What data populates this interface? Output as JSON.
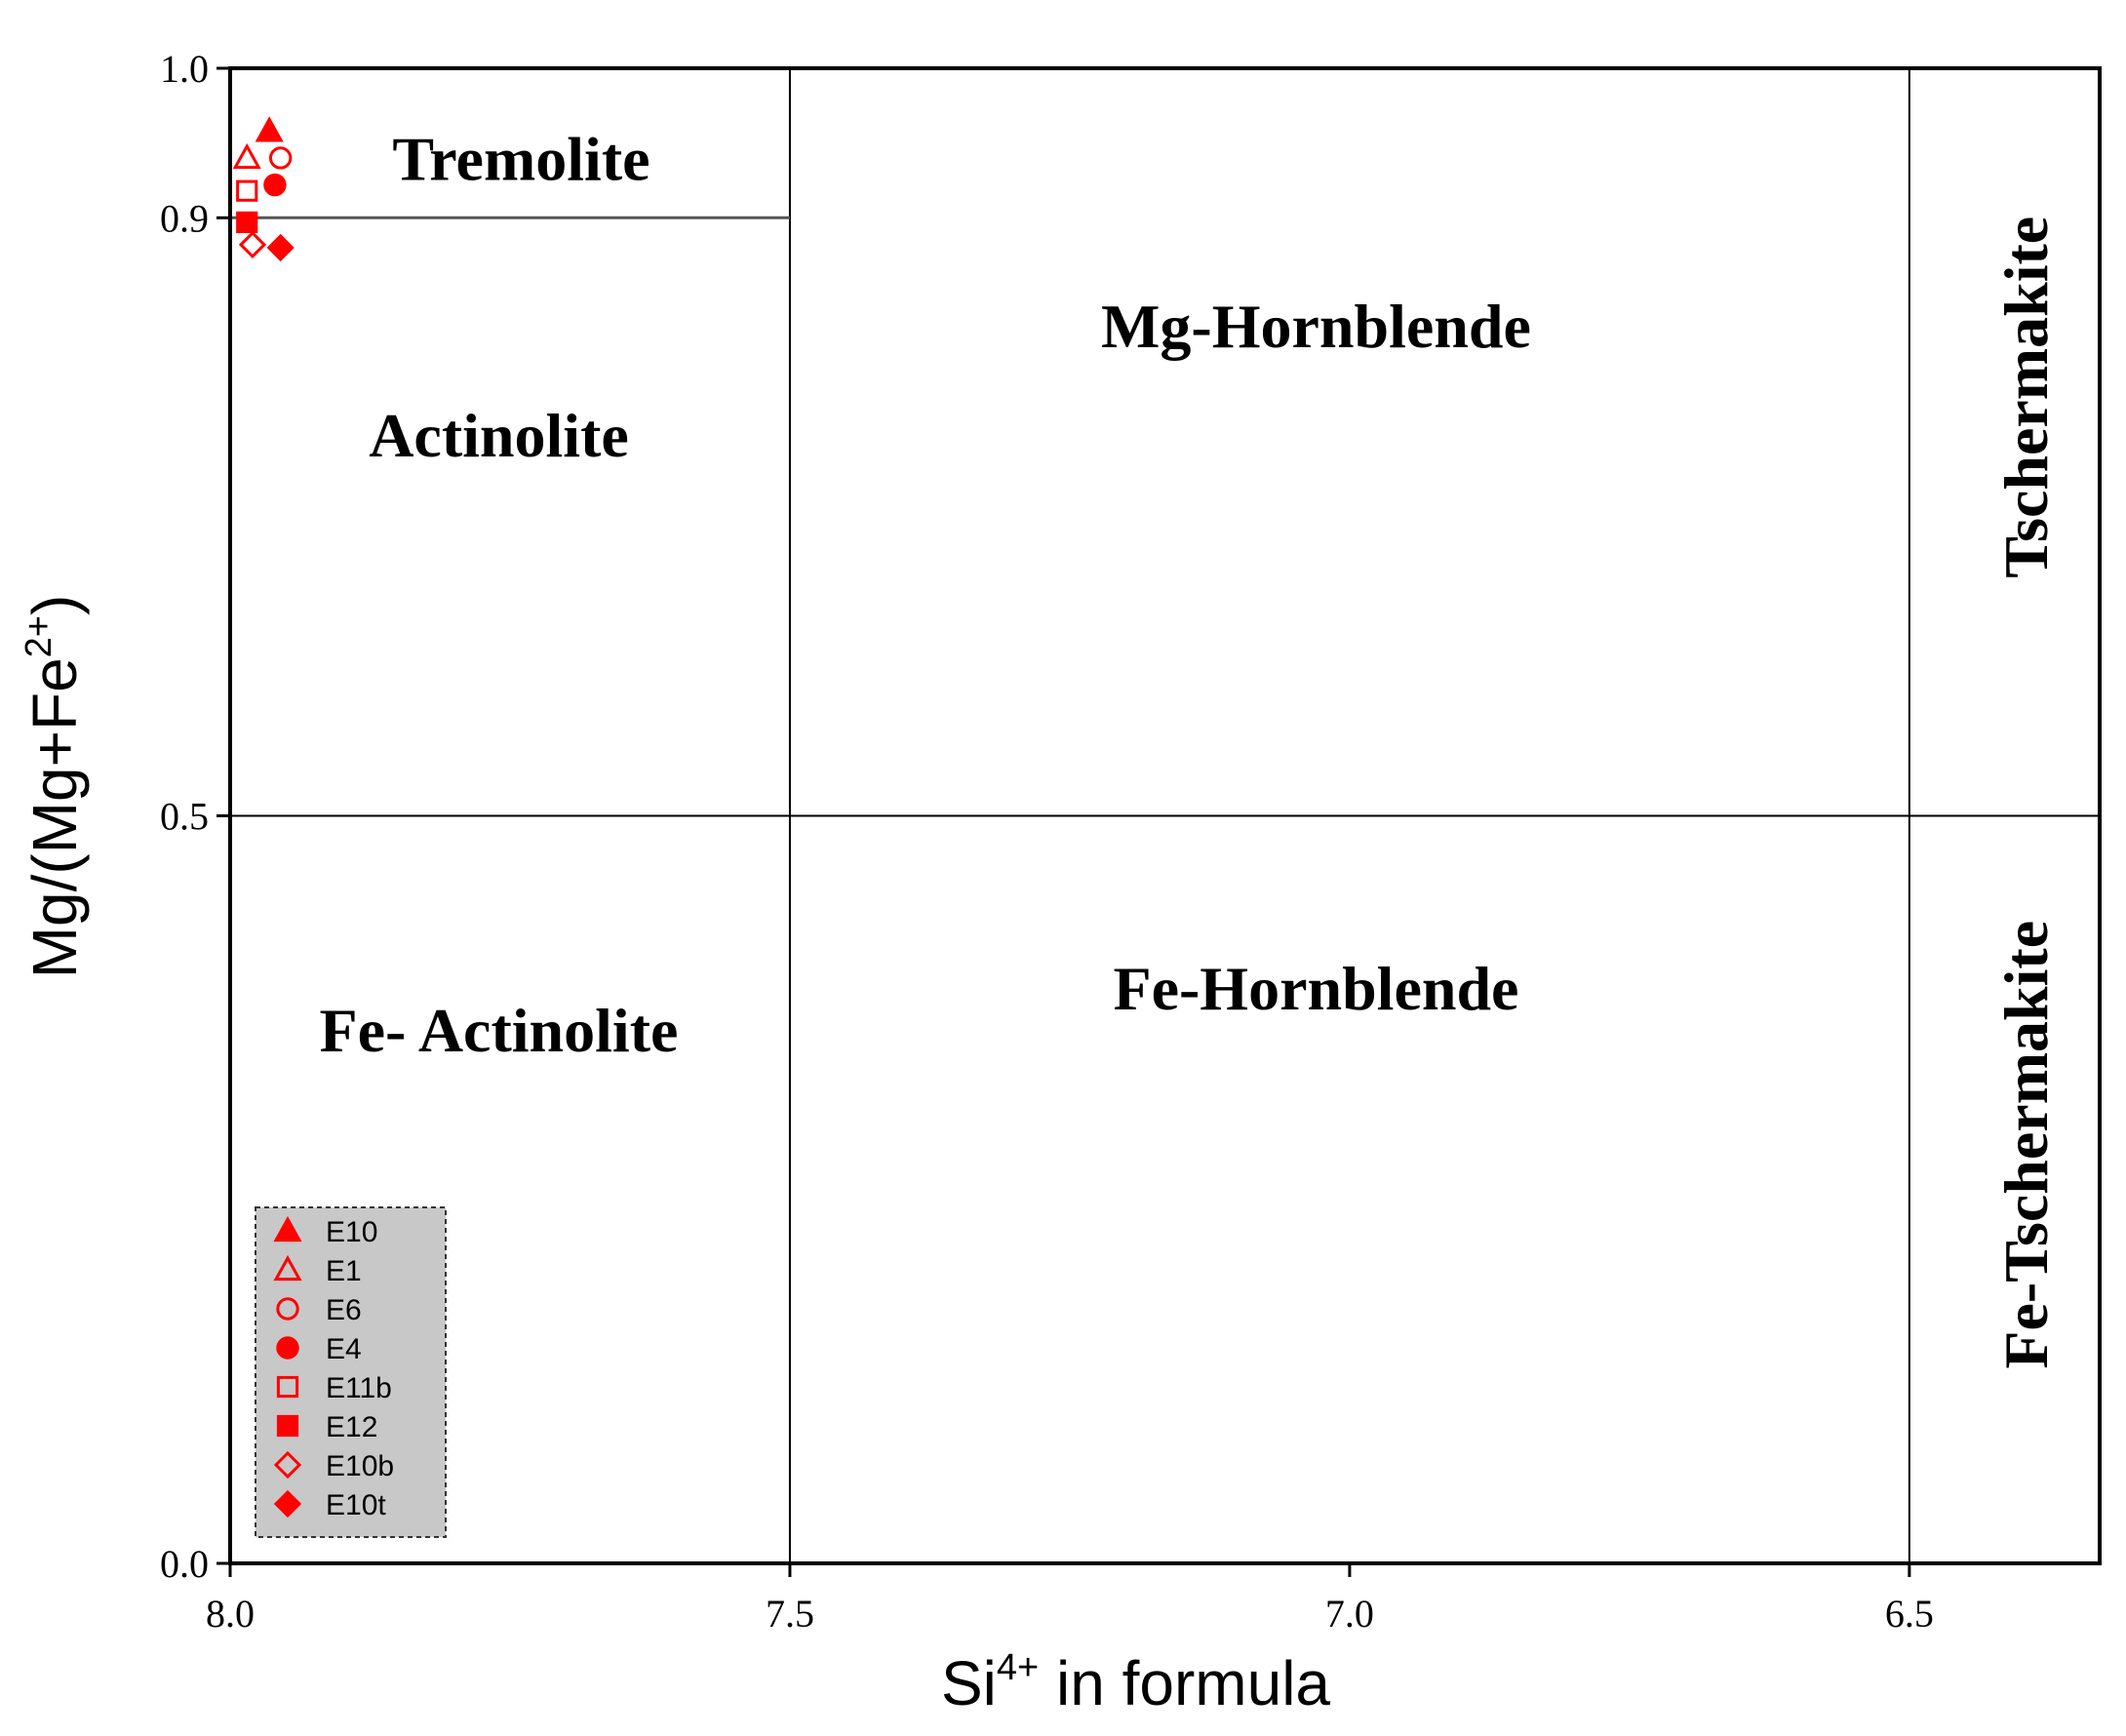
{
  "chart_data": {
    "type": "scatter",
    "xlabel": "Si",
    "xlabel_sup": "4+",
    "xlabel_rest": " in formula",
    "ylabel": "Mg/(Mg+Fe",
    "ylabel_sup": "2+",
    "ylabel_rest": ")",
    "xlim": [
      8.0,
      6.33
    ],
    "x_reversed": true,
    "ylim": [
      0.0,
      1.0
    ],
    "x_ticks": [
      {
        "value": 8.0,
        "label": "8.0"
      },
      {
        "value": 7.5,
        "label": "7.5"
      },
      {
        "value": 7.0,
        "label": "7.0"
      },
      {
        "value": 6.5,
        "label": "6.5"
      }
    ],
    "y_ticks": [
      {
        "value": 0.0,
        "label": "0.0"
      },
      {
        "value": 0.5,
        "label": "0.5"
      },
      {
        "value": 0.9,
        "label": "0.9"
      },
      {
        "value": 1.0,
        "label": "1.0"
      }
    ],
    "field_boundaries": {
      "vertical_si": [
        7.5,
        6.5
      ],
      "horizontal_full": 0.5,
      "horizontal_partial": {
        "y": 0.9,
        "x_from": 8.0,
        "x_to": 7.5
      }
    },
    "fields": [
      {
        "name": "Tremolite",
        "x": 7.74,
        "y": 0.935,
        "rotate": false
      },
      {
        "name": "Actinolite",
        "x": 7.76,
        "y": 0.75,
        "rotate": false
      },
      {
        "name": "Mg-Hornblende",
        "x": 7.03,
        "y": 0.823,
        "rotate": false
      },
      {
        "name": "Fe- Actinolite",
        "x": 7.76,
        "y": 0.352,
        "rotate": false
      },
      {
        "name": "Fe-Hornblende",
        "x": 7.03,
        "y": 0.38,
        "rotate": false
      },
      {
        "name": "Tschermakite",
        "x": 6.39,
        "y": 0.78,
        "rotate": true
      },
      {
        "name": "Fe-Tschermakite",
        "x": 6.39,
        "y": 0.28,
        "rotate": true
      }
    ],
    "series": [
      {
        "name": "E10",
        "marker": "triangle",
        "filled": true,
        "points": [
          [
            7.965,
            0.958
          ]
        ]
      },
      {
        "name": "E1",
        "marker": "triangle",
        "filled": false,
        "points": [
          [
            7.985,
            0.94
          ]
        ]
      },
      {
        "name": "E6",
        "marker": "circle",
        "filled": false,
        "points": [
          [
            7.955,
            0.94
          ]
        ]
      },
      {
        "name": "E4",
        "marker": "circle",
        "filled": true,
        "points": [
          [
            7.96,
            0.922
          ]
        ]
      },
      {
        "name": "E11b",
        "marker": "square",
        "filled": false,
        "points": [
          [
            7.985,
            0.918
          ]
        ]
      },
      {
        "name": "E12",
        "marker": "square",
        "filled": true,
        "points": [
          [
            7.985,
            0.897
          ]
        ]
      },
      {
        "name": "E10b",
        "marker": "diamond",
        "filled": false,
        "points": [
          [
            7.98,
            0.882
          ]
        ]
      },
      {
        "name": "E10t",
        "marker": "diamond",
        "filled": true,
        "points": [
          [
            7.955,
            0.88
          ]
        ]
      }
    ],
    "legend_placement": "bottom-left",
    "marker_color": "#ff0000",
    "legend_bg": "#c8c8c8",
    "grid": false
  }
}
